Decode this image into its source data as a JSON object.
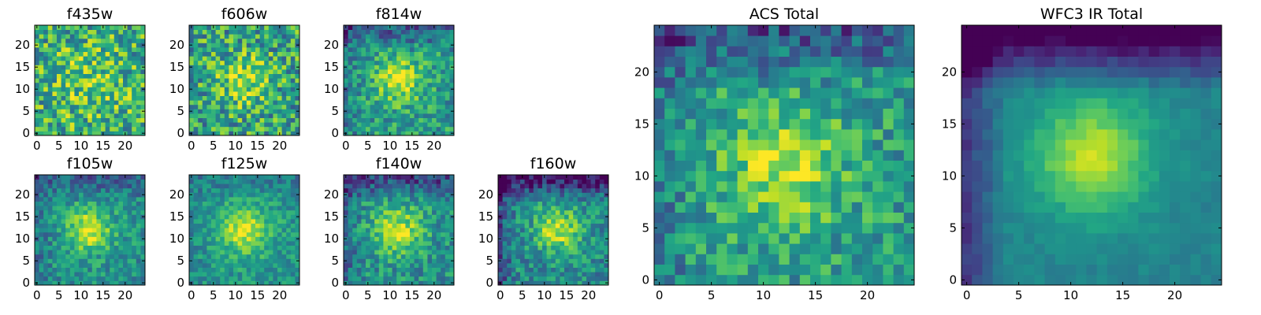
{
  "figure": {
    "background": "#ffffff",
    "colormap": "viridis"
  },
  "chart_data": [
    {
      "type": "heatmap",
      "title": "f435w",
      "xticks": [
        "0",
        "5",
        "10",
        "15",
        "20"
      ],
      "yticks": [
        "0",
        "5",
        "10",
        "15",
        "20"
      ],
      "xlim": [
        0,
        25
      ],
      "ylim": [
        0,
        25
      ],
      "grid_size": 25,
      "pattern": {
        "seed": 11,
        "noise": 0.62,
        "center": [
          12,
          12
        ],
        "blob_sigma": 6,
        "blob_amp": 0.15,
        "base": 0.62,
        "edge_dark": 0.0
      }
    },
    {
      "type": "heatmap",
      "title": "f606w",
      "xticks": [
        "0",
        "5",
        "10",
        "15",
        "20"
      ],
      "yticks": [
        "0",
        "5",
        "10",
        "15",
        "20"
      ],
      "xlim": [
        0,
        25
      ],
      "ylim": [
        0,
        25
      ],
      "grid_size": 25,
      "pattern": {
        "seed": 23,
        "noise": 0.6,
        "center": [
          12,
          12
        ],
        "blob_sigma": 4,
        "blob_amp": 0.3,
        "base": 0.58,
        "edge_dark": 0.0
      }
    },
    {
      "type": "heatmap",
      "title": "f814w",
      "xticks": [
        "0",
        "5",
        "10",
        "15",
        "20"
      ],
      "yticks": [
        "0",
        "5",
        "10",
        "15",
        "20"
      ],
      "xlim": [
        0,
        25
      ],
      "ylim": [
        0,
        25
      ],
      "grid_size": 25,
      "pattern": {
        "seed": 37,
        "noise": 0.42,
        "center": [
          12,
          12
        ],
        "blob_sigma": 3.5,
        "blob_amp": 0.4,
        "base": 0.55,
        "edge_dark": 0.25
      }
    },
    {
      "type": "heatmap",
      "title": "f105w",
      "xticks": [
        "0",
        "5",
        "10",
        "15",
        "20"
      ],
      "yticks": [
        "0",
        "5",
        "10",
        "15",
        "20"
      ],
      "xlim": [
        0,
        25
      ],
      "ylim": [
        0,
        25
      ],
      "grid_size": 25,
      "pattern": {
        "seed": 41,
        "noise": 0.35,
        "center": [
          12,
          12
        ],
        "blob_sigma": 3.5,
        "blob_amp": 0.45,
        "base": 0.5,
        "edge_dark": 0.2
      }
    },
    {
      "type": "heatmap",
      "title": "f125w",
      "xticks": [
        "0",
        "5",
        "10",
        "15",
        "20"
      ],
      "yticks": [
        "0",
        "5",
        "10",
        "15",
        "20"
      ],
      "xlim": [
        0,
        25
      ],
      "ylim": [
        0,
        25
      ],
      "grid_size": 25,
      "pattern": {
        "seed": 53,
        "noise": 0.3,
        "center": [
          12,
          12
        ],
        "blob_sigma": 4,
        "blob_amp": 0.4,
        "base": 0.52,
        "edge_dark": 0.1
      }
    },
    {
      "type": "heatmap",
      "title": "f140w",
      "xticks": [
        "0",
        "5",
        "10",
        "15",
        "20"
      ],
      "yticks": [
        "0",
        "5",
        "10",
        "15",
        "20"
      ],
      "xlim": [
        0,
        25
      ],
      "ylim": [
        0,
        25
      ],
      "grid_size": 25,
      "pattern": {
        "seed": 67,
        "noise": 0.38,
        "center": [
          12,
          12
        ],
        "blob_sigma": 4,
        "blob_amp": 0.4,
        "base": 0.5,
        "edge_dark": 0.3
      }
    },
    {
      "type": "heatmap",
      "title": "f160w",
      "xticks": [
        "0",
        "5",
        "10",
        "15",
        "20"
      ],
      "yticks": [
        "0",
        "5",
        "10",
        "15",
        "20"
      ],
      "xlim": [
        0,
        25
      ],
      "ylim": [
        0,
        25
      ],
      "grid_size": 25,
      "pattern": {
        "seed": 79,
        "noise": 0.38,
        "center": [
          13,
          12
        ],
        "blob_sigma": 3.5,
        "blob_amp": 0.45,
        "base": 0.48,
        "edge_dark": 0.45
      }
    },
    {
      "type": "heatmap",
      "title": "ACS Total",
      "xticks": [
        "0",
        "5",
        "10",
        "15",
        "20"
      ],
      "yticks": [
        "0",
        "5",
        "10",
        "15",
        "20"
      ],
      "xlim": [
        0,
        25
      ],
      "ylim": [
        0,
        25
      ],
      "grid_size": 25,
      "pattern": {
        "seed": 97,
        "noise": 0.4,
        "center": [
          12,
          11
        ],
        "blob_sigma": 4,
        "blob_amp": 0.35,
        "base": 0.55,
        "edge_dark": 0.3
      }
    },
    {
      "type": "heatmap",
      "title": "WFC3 IR Total",
      "xticks": [
        "0",
        "5",
        "10",
        "15",
        "20"
      ],
      "yticks": [
        "0",
        "5",
        "10",
        "15",
        "20"
      ],
      "xlim": [
        0,
        25
      ],
      "ylim": [
        0,
        25
      ],
      "grid_size": 25,
      "pattern": {
        "seed": 101,
        "noise": 0.1,
        "center": [
          12,
          12
        ],
        "blob_sigma": 4,
        "blob_amp": 0.45,
        "base": 0.45,
        "edge_dark": 0.55
      }
    }
  ]
}
